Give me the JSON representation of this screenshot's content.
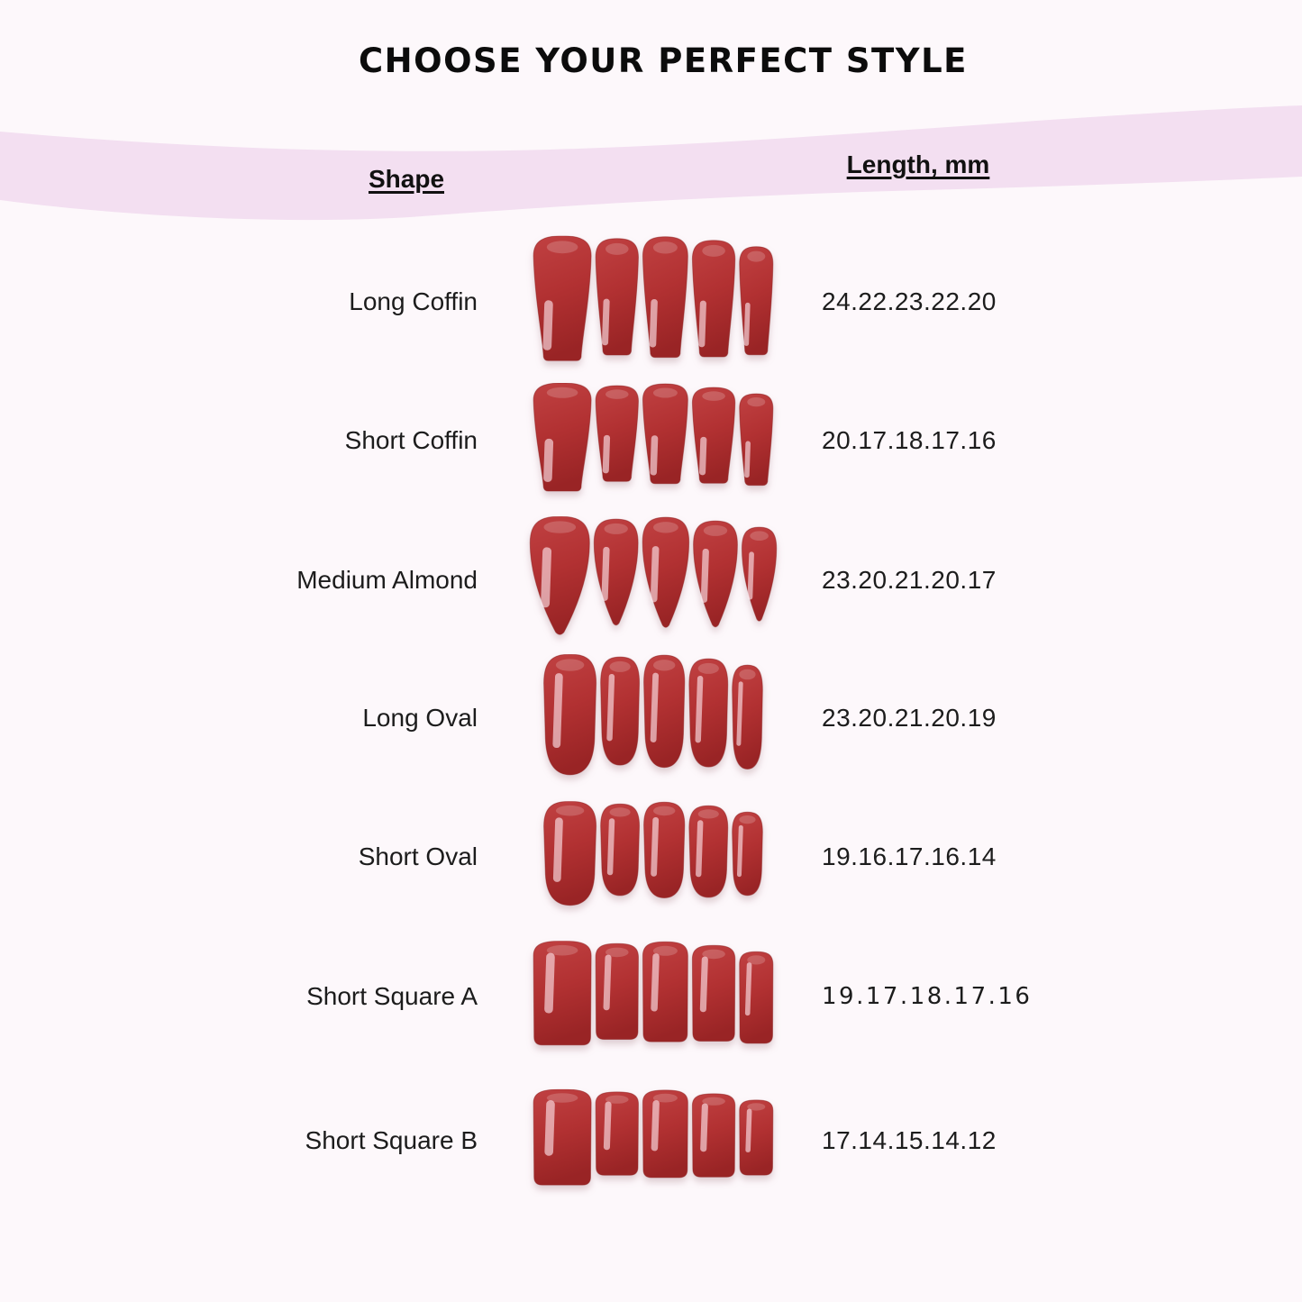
{
  "title": "CHOOSE YOUR PERFECT STYLE",
  "table": {
    "headers": {
      "shape": "Shape",
      "length": "Length, mm"
    },
    "rows": [
      {
        "shape": "Long Coffin",
        "lengths": "24.22.23.22.20"
      },
      {
        "shape": "Short Coffin",
        "lengths": "20.17.18.17.16"
      },
      {
        "shape": "Medium Almond",
        "lengths": "23.20.21.20.17"
      },
      {
        "shape": "Long Oval",
        "lengths": "23.20.21.20.19"
      },
      {
        "shape": "Short Oval",
        "lengths": "19.16.17.16.14"
      },
      {
        "shape": "Short Square A",
        "lengths": "19.17.18.17.16"
      },
      {
        "shape": "Short Square B",
        "lengths": "17.14.15.14.12"
      }
    ]
  },
  "colors": {
    "background": "#fdf8fb",
    "band_pink": "#f3dff1",
    "nail_red": "#b23132",
    "nail_red_dark": "#992425",
    "text": "#1c1c1c"
  },
  "chart_data": {
    "type": "table",
    "title": "CHOOSE YOUR PERFECT STYLE",
    "columns": [
      "Shape",
      "Length, mm"
    ],
    "rows": [
      [
        "Long Coffin",
        "24.22.23.22.20"
      ],
      [
        "Short Coffin",
        "20.17.18.17.16"
      ],
      [
        "Medium Almond",
        "23.20.21.20.17"
      ],
      [
        "Long Oval",
        "23.20.21.20.19"
      ],
      [
        "Short Oval",
        "19.16.17.16.14"
      ],
      [
        "Short Square A",
        "19.17.18.17.16"
      ],
      [
        "Short Square B",
        "17.14.15.14.12"
      ]
    ],
    "lengths_mm_per_finger": {
      "finger_order": [
        "thumb",
        "index",
        "middle",
        "ring",
        "pinky"
      ],
      "Long Coffin": [
        24,
        22,
        23,
        22,
        20
      ],
      "Short Coffin": [
        20,
        17,
        18,
        17,
        16
      ],
      "Medium Almond": [
        23,
        20,
        21,
        20,
        17
      ],
      "Long Oval": [
        23,
        20,
        21,
        20,
        19
      ],
      "Short Oval": [
        19,
        16,
        17,
        16,
        14
      ],
      "Short Square A": [
        19,
        17,
        18,
        17,
        16
      ],
      "Short Square B": [
        17,
        14,
        15,
        14,
        12
      ]
    }
  }
}
